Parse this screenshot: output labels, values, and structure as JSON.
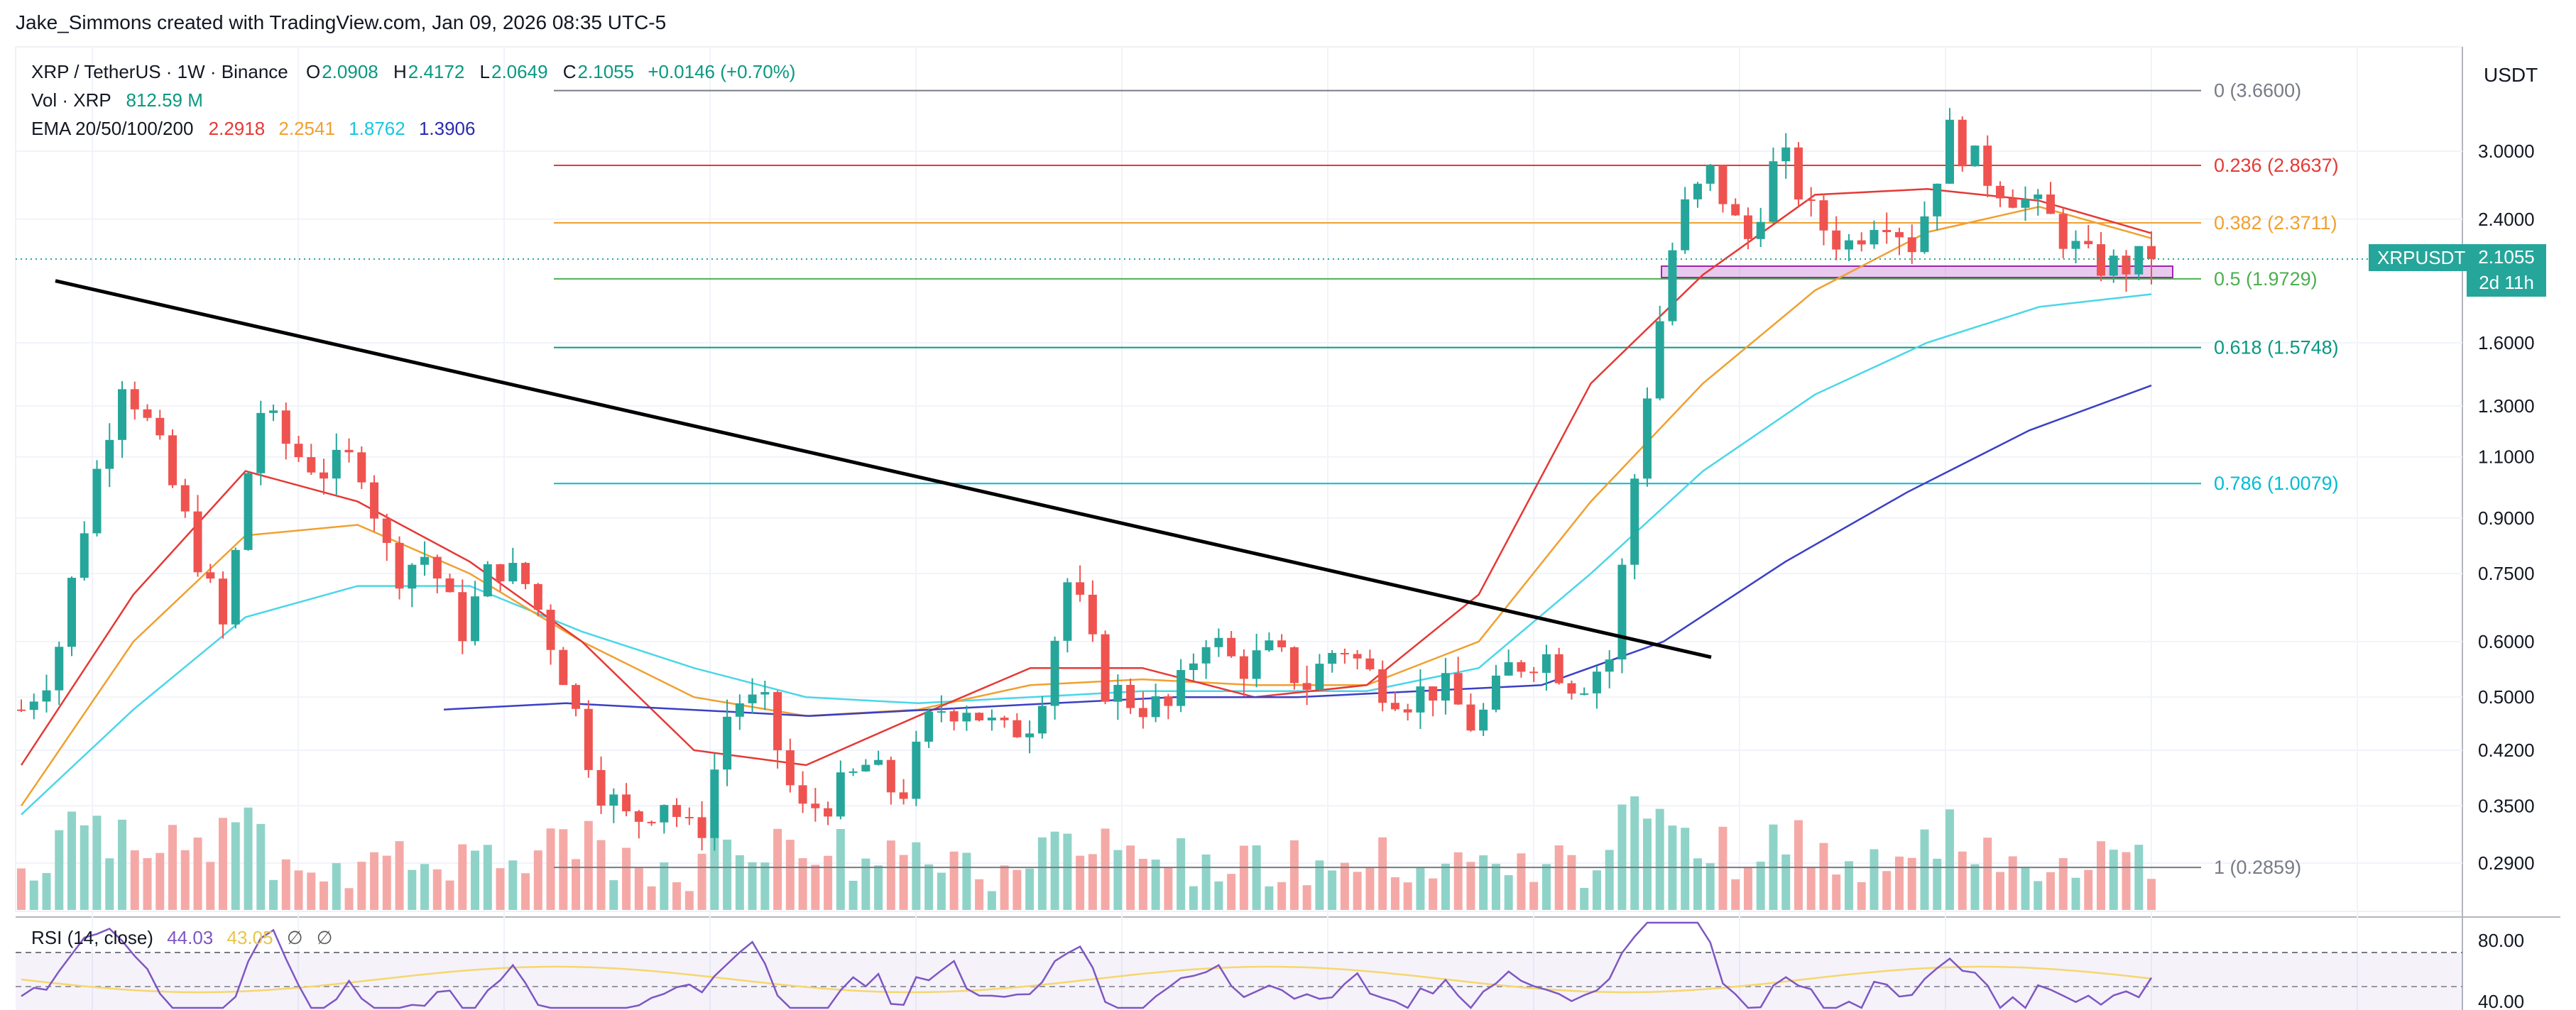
{
  "credit": "Jake_Simmons created with TradingView.com, Jan 09, 2026 08:35 UTC-5",
  "legend": {
    "symbol": "XRP / TetherUS · 1W · Binance",
    "o_label": "O",
    "o": "2.0908",
    "h_label": "H",
    "h": "2.4172",
    "l_label": "L",
    "l": "2.0649",
    "c_label": "C",
    "c": "2.1055",
    "change": "+0.0146 (+0.70%)",
    "vol_label": "Vol · XRP",
    "vol": "812.59 M",
    "ema_label": "EMA 20/50/100/200",
    "ema20": "2.2918",
    "ema50": "2.2541",
    "ema100": "1.8762",
    "ema200": "1.3906"
  },
  "rsi_legend": {
    "label": "RSI (14, close)",
    "v1": "44.03",
    "v2": "43.05",
    "s1": "∅",
    "s2": "∅"
  },
  "currency_button": "USDT",
  "price_tag": {
    "symbol": "XRPUSDT",
    "price": "2.1055",
    "countdown": "2d 11h"
  },
  "colors": {
    "up": "#26a69a",
    "down": "#ef5350",
    "ema20": "#e53935",
    "ema50": "#f0a030",
    "ema100": "#4ad6e8",
    "ema200": "#3b3fc4",
    "rsi": "#7e57c2",
    "rsi_ma": "#f5d76e"
  },
  "chart_data": {
    "type": "candlestick",
    "title": "XRP / TetherUS · 1W · Binance",
    "y_scale": "log",
    "y_ticks": [
      "3.0000",
      "2.4000",
      "1.6000",
      "1.3000",
      "1.1000",
      "0.9000",
      "0.7500",
      "0.6000",
      "0.5000",
      "0.4200",
      "0.3500",
      "0.2900"
    ],
    "grid": true,
    "fib_levels": [
      {
        "label": "0 (3.6600)",
        "value": 3.66,
        "color": "#787b86"
      },
      {
        "label": "0.236 (2.8637)",
        "value": 2.8637,
        "color": "#e53935"
      },
      {
        "label": "0.382 (2.3711)",
        "value": 2.3711,
        "color": "#f0a030"
      },
      {
        "label": "0.5 (1.9729)",
        "value": 1.9729,
        "color": "#4caf50"
      },
      {
        "label": "0.618 (1.5748)",
        "value": 1.5748,
        "color": "#089981"
      },
      {
        "label": "0.786 (1.0079)",
        "value": 1.0079,
        "color": "#00bcd4"
      },
      {
        "label": "1 (0.2859)",
        "value": 0.2859,
        "color": "#787b86"
      }
    ],
    "trendline": {
      "from": 1.96,
      "to": 0.57
    },
    "close_path": [
      0.48,
      0.56,
      0.95,
      1.45,
      1.15,
      0.85,
      0.62,
      1.3,
      1.12,
      1.05,
      1.1,
      0.75,
      0.8,
      0.62,
      0.78,
      0.72,
      0.55,
      0.38,
      0.33,
      0.36,
      0.31,
      0.5,
      0.48,
      0.34,
      0.36,
      0.4,
      0.36,
      0.48,
      0.49,
      0.44,
      0.47,
      0.75,
      0.52,
      0.49,
      0.48,
      0.62,
      0.55,
      0.58,
      0.52,
      0.6,
      0.53,
      0.5,
      0.52,
      0.45,
      0.55,
      0.58,
      0.52,
      0.57,
      1.3,
      2.4,
      2.8,
      2.2,
      3.0,
      2.4,
      2.2,
      2.5,
      2.2,
      3.2,
      2.8,
      2.6,
      2.4,
      2.1,
      2.05,
      2.1055
    ],
    "ema_points": {
      "ema20": [
        0.4,
        0.7,
        1.05,
        0.95,
        0.78,
        0.6,
        0.42,
        0.4,
        0.47,
        0.55,
        0.55,
        0.5,
        0.52,
        0.7,
        1.4,
        2.0,
        2.6,
        2.65,
        2.55,
        2.2918
      ],
      "ema50": [
        0.35,
        0.6,
        0.85,
        0.88,
        0.75,
        0.6,
        0.5,
        0.47,
        0.48,
        0.52,
        0.53,
        0.52,
        0.52,
        0.6,
        0.95,
        1.4,
        1.9,
        2.3,
        2.5,
        2.2541
      ],
      "ema100": [
        0.34,
        0.48,
        0.65,
        0.72,
        0.72,
        0.62,
        0.55,
        0.5,
        0.49,
        0.5,
        0.51,
        0.51,
        0.51,
        0.55,
        0.75,
        1.05,
        1.35,
        1.6,
        1.8,
        1.8762
      ],
      "ema200": [
        0.48,
        0.49,
        0.48,
        0.47,
        0.48,
        0.49,
        0.5,
        0.5,
        0.51,
        0.52,
        0.6,
        0.78,
        0.98,
        1.2,
        1.3906
      ]
    },
    "rsi": {
      "overbought": 80,
      "oversold": 40,
      "labels": [
        "80.00",
        "40.00"
      ]
    }
  }
}
